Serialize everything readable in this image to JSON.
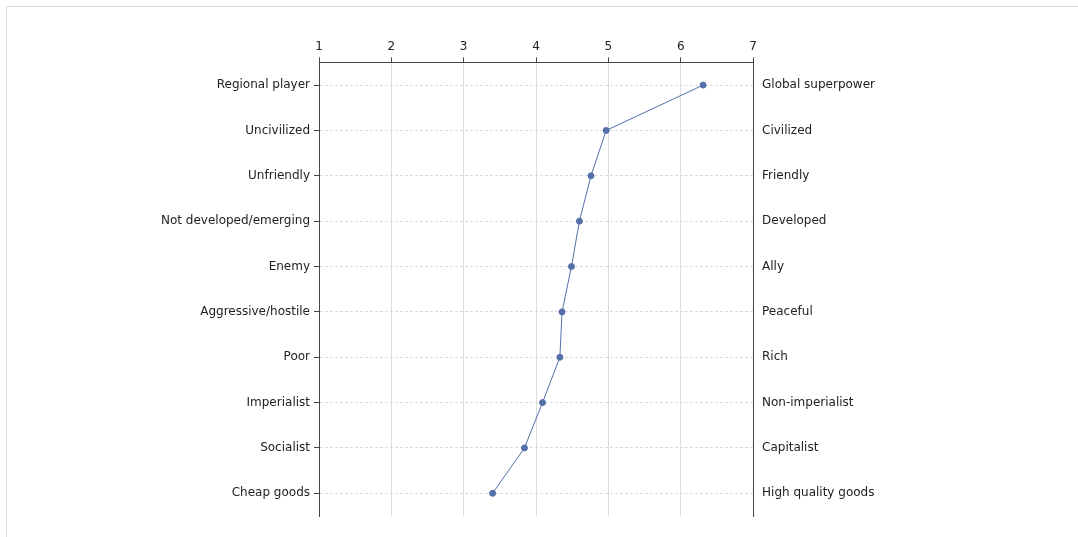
{
  "chart_data": {
    "type": "line",
    "orientation": "horizontal",
    "categories": [
      "Regional player",
      "Uncivilized",
      "Unfriendly",
      "Not developed/emerging",
      "Enemy",
      "Aggressive/hostile",
      "Poor",
      "Imperialist",
      "Socialist",
      "Cheap goods"
    ],
    "y2_categories": [
      "Global superpower",
      "Civilized",
      "Friendly",
      "Developed",
      "Ally",
      "Peaceful",
      "Rich",
      "Non-imperialist",
      "Capitalist",
      "High quality goods"
    ],
    "series": [
      {
        "color": "#5470a8",
        "values": [
          6.31,
          4.97,
          4.76,
          4.6,
          4.49,
          4.36,
          4.33,
          4.09,
          3.84,
          3.4
        ]
      }
    ],
    "xlim": [
      1,
      7
    ],
    "xticks": [
      1,
      2,
      3,
      4,
      5,
      6,
      7
    ],
    "grid": true,
    "legend": false,
    "marker": "circle",
    "line_style": "solid"
  }
}
